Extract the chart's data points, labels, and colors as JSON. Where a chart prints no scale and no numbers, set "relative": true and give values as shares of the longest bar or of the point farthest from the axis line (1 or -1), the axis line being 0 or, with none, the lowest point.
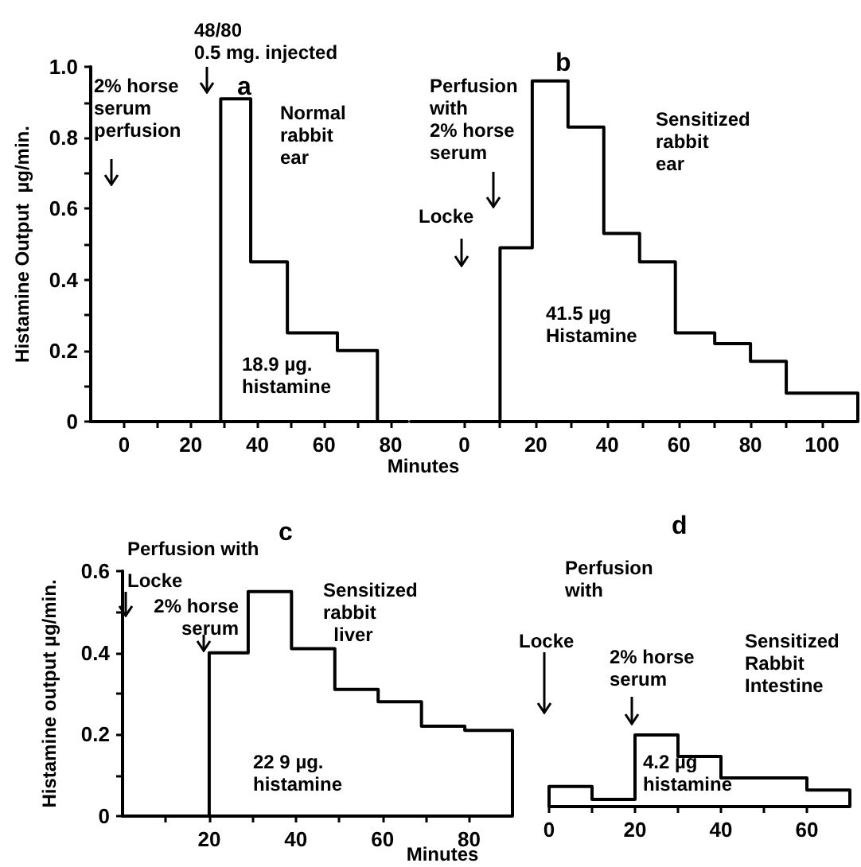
{
  "chart_data": [
    {
      "type": "step",
      "title": "a",
      "ylabel": "Histamine Output  µg/min.",
      "color": "#000000",
      "x": [
        -10,
        29,
        38,
        49,
        64,
        76
      ],
      "values": [
        0,
        0.91,
        0.45,
        0.25,
        0.2,
        0
      ],
      "xlim": [
        -10,
        85
      ],
      "ylim": [
        0,
        1
      ],
      "xticks": [
        0,
        20,
        40,
        60,
        80,
        {
          "value": 10,
          "label": null
        },
        {
          "value": 30,
          "label": null
        },
        {
          "value": 50,
          "label": null
        },
        {
          "value": 70,
          "label": null
        }
      ],
      "yticks": [
        0,
        {
          "value": 0.2,
          "label": "0.2"
        },
        {
          "value": 0.4,
          "label": "0.4"
        },
        {
          "value": 0.6,
          "label": "0.6"
        },
        {
          "value": 0.8,
          "label": "0.8"
        },
        {
          "value": 1,
          "label": "1.0"
        },
        {
          "value": 0.1,
          "label": null
        },
        {
          "value": 0.3,
          "label": null
        },
        {
          "value": 0.5,
          "label": null
        },
        {
          "value": 0.7,
          "label": null
        },
        {
          "value": 0.9,
          "label": null
        }
      ],
      "annotations": [
        "48/80\n0.5 mg. injected",
        "2% horse\nserum\nperfusion",
        "Normal\nrabbit\near",
        "18.9 µg.\nhistamine"
      ]
    },
    {
      "type": "step",
      "title": "b",
      "xlabel": "Minutes",
      "color": "#000000",
      "x": [
        -15,
        10,
        19,
        29,
        39,
        49,
        59,
        70,
        80,
        90,
        110
      ],
      "values": [
        0,
        0.49,
        0.96,
        0.83,
        0.53,
        0.45,
        0.25,
        0.22,
        0.17,
        0.08,
        0
      ],
      "xlim": [
        -15,
        110
      ],
      "ylim": [
        0,
        1
      ],
      "tick_labels": "x",
      "xticks": [
        0,
        20,
        40,
        60,
        80,
        100,
        {
          "value": 10,
          "label": null
        },
        {
          "value": 30,
          "label": null
        },
        {
          "value": 50,
          "label": null
        },
        {
          "value": 70,
          "label": null
        },
        {
          "value": 90,
          "label": null
        }
      ],
      "annotations": [
        "Perfusion\nwith\n2% horse\nserum",
        "Locke",
        "Sensitized\nrabbit\near",
        "41.5 µg\nHistamine"
      ]
    },
    {
      "type": "step",
      "title": "c",
      "xlabel": "Minutes",
      "ylabel": "Histamine output µg/min.",
      "color": "#000000",
      "x": [
        0,
        20,
        29,
        39,
        49,
        59,
        69,
        79,
        90
      ],
      "values": [
        0,
        0.4,
        0.55,
        0.41,
        0.31,
        0.28,
        0.22,
        0.21,
        0
      ],
      "xlim": [
        0,
        90
      ],
      "ylim": [
        0,
        0.6
      ],
      "xticks": [
        20,
        40,
        60,
        80,
        {
          "value": 10,
          "label": null
        },
        {
          "value": 30,
          "label": null
        },
        {
          "value": 50,
          "label": null
        },
        {
          "value": 70,
          "label": null
        }
      ],
      "yticks": [
        0,
        {
          "value": 0.2,
          "label": "0.2"
        },
        {
          "value": 0.4,
          "label": "0.4"
        },
        {
          "value": 0.6,
          "label": "0.6"
        },
        {
          "value": 0.1,
          "label": null
        },
        {
          "value": 0.3,
          "label": null
        },
        {
          "value": 0.5,
          "label": null
        }
      ],
      "annotations": [
        "Perfusion with",
        "Locke",
        "2% horse\nserum",
        "Sensitized\nrabbit\n  liver",
        "22 9 µg.\nhistamine"
      ]
    },
    {
      "type": "step",
      "title": "d",
      "relative": true,
      "color": "#000000",
      "x": [
        0,
        0,
        10,
        20,
        30,
        40,
        60,
        70
      ],
      "values": [
        0,
        0.28,
        0.1,
        1,
        0.7,
        0.4,
        0.23,
        0
      ],
      "xlim": [
        0,
        70
      ],
      "xticks": [
        0,
        20,
        40,
        60,
        {
          "value": 10,
          "label": null
        },
        {
          "value": 30,
          "label": null
        },
        {
          "value": 50,
          "label": null
        }
      ],
      "annotations": [
        "Perfusion\nwith",
        "Locke",
        "2% horse\nserum",
        "Sensitized\nRabbit\nIntestine",
        "4.2 µg\nhistamine"
      ]
    }
  ]
}
